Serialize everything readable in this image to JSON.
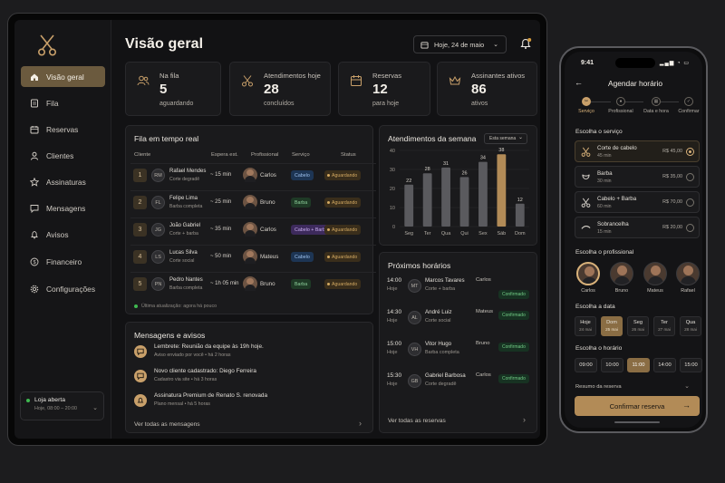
{
  "sidebar": {
    "items": [
      {
        "label": "Visão geral",
        "icon": "home-icon"
      },
      {
        "label": "Fila",
        "icon": "list-icon"
      },
      {
        "label": "Reservas",
        "icon": "calendar-icon"
      },
      {
        "label": "Clientes",
        "icon": "users-icon"
      },
      {
        "label": "Assinaturas",
        "icon": "star-icon"
      },
      {
        "label": "Mensagens",
        "icon": "chat-icon"
      },
      {
        "label": "Avisos",
        "icon": "bell-icon"
      },
      {
        "label": "Financeiro",
        "icon": "dollar-icon"
      },
      {
        "label": "Configurações",
        "icon": "gear-icon"
      }
    ],
    "store": {
      "status": "Loja aberta",
      "hours": "Hoje, 08:00 – 20:00"
    }
  },
  "header": {
    "title": "Visão geral",
    "date": "Hoje, 24 de maio"
  },
  "stats": [
    {
      "label": "Na fila",
      "value": "5",
      "sub": "aguardando"
    },
    {
      "label": "Atendimentos hoje",
      "value": "28",
      "sub": "concluídos"
    },
    {
      "label": "Reservas",
      "value": "12",
      "sub": "para hoje"
    },
    {
      "label": "Assinantes ativos",
      "value": "86",
      "sub": "ativos"
    }
  ],
  "queue": {
    "title": "Fila em tempo real",
    "headers": {
      "client": "Cliente",
      "wait": "Espera est.",
      "pro": "Profissional",
      "service": "Serviço",
      "status": "Status"
    },
    "rows": [
      {
        "n": "1",
        "initials": "RM",
        "name": "Rafael Mendes",
        "svc": "Corte degradê",
        "wait": "~ 15 min",
        "pro": "Carlos",
        "chip": "Cabelo",
        "status": "Aguardando"
      },
      {
        "n": "2",
        "initials": "FL",
        "name": "Felipe Lima",
        "svc": "Barba completa",
        "wait": "~ 25 min",
        "pro": "Bruno",
        "chip": "Barba",
        "status": "Aguardando"
      },
      {
        "n": "3",
        "initials": "JG",
        "name": "João Gabriel",
        "svc": "Corte + barba",
        "wait": "~ 35 min",
        "pro": "Carlos",
        "chip": "Cabelo + Barba",
        "status": "Aguardando"
      },
      {
        "n": "4",
        "initials": "LS",
        "name": "Lucas Silva",
        "svc": "Corte social",
        "wait": "~ 50 min",
        "pro": "Mateus",
        "chip": "Cabelo",
        "status": "Aguardando"
      },
      {
        "n": "5",
        "initials": "PN",
        "name": "Pedro Nantes",
        "svc": "Barba completa",
        "wait": "~ 1h 05 min",
        "pro": "Bruno",
        "chip": "Barba",
        "status": "Aguardando"
      }
    ],
    "updated": "Última atualização: agora há pouco"
  },
  "week": {
    "title": "Atendimentos da semana",
    "filter": "Esta semana"
  },
  "chart_data": {
    "type": "bar",
    "categories": [
      "Seg",
      "Ter",
      "Qua",
      "Qui",
      "Sex",
      "Sáb",
      "Dom"
    ],
    "values": [
      22,
      28,
      31,
      26,
      34,
      38,
      12
    ],
    "highlight": "Sáb",
    "ylim": [
      0,
      40
    ],
    "yticks": [
      0,
      10,
      20,
      30,
      40
    ],
    "colors": {
      "bar": "#5a5a5e",
      "highlight": "#b28b57"
    }
  },
  "messages": {
    "title": "Mensagens e avisos",
    "items": [
      {
        "title": "Lembrete: Reunião da equipe às 19h hoje.",
        "meta": "Aviso enviado por você  •  há 2 horas"
      },
      {
        "title": "Novo cliente cadastrado: Diego Ferreira",
        "meta": "Cadastro via site  •  há 3 horas"
      },
      {
        "title": "Assinatura Premium de Renato S. renovada",
        "meta": "Plano mensal  •  há 5 horas"
      }
    ],
    "link": "Ver todas as mensagens"
  },
  "next": {
    "title": "Próximos horários",
    "items": [
      {
        "time": "14:00",
        "day": "Hoje",
        "initials": "MT",
        "name": "Marcos Tavares",
        "svc": "Corte + barba",
        "pro": "Carlos",
        "status": "Confirmado"
      },
      {
        "time": "14:30",
        "day": "Hoje",
        "initials": "AL",
        "name": "André Luiz",
        "svc": "Corte social",
        "pro": "Mateus",
        "status": "Confirmado"
      },
      {
        "time": "15:00",
        "day": "Hoje",
        "initials": "VH",
        "name": "Vitor Hugo",
        "svc": "Barba completa",
        "pro": "Bruno",
        "status": "Confirmado"
      },
      {
        "time": "15:30",
        "day": "Hoje",
        "initials": "GB",
        "name": "Gabriel Barbosa",
        "svc": "Corte degradê",
        "pro": "Carlos",
        "status": "Confirmado"
      }
    ],
    "link": "Ver todas as reservas"
  },
  "phone": {
    "time": "9:41",
    "title": "Agendar horário",
    "steps": [
      "Serviço",
      "Profissional",
      "Data e hora",
      "Confirmar"
    ],
    "service_title": "Escolha o serviço",
    "services": [
      {
        "name": "Corte de cabelo",
        "dur": "45 min",
        "price": "R$ 45,00",
        "icon": "scissors-icon"
      },
      {
        "name": "Barba",
        "dur": "30 min",
        "price": "R$ 35,00",
        "icon": "beard-icon"
      },
      {
        "name": "Cabelo + Barba",
        "dur": "60 min",
        "price": "R$ 70,00",
        "icon": "scissors-icon"
      },
      {
        "name": "Sobrancelha",
        "dur": "15 min",
        "price": "R$ 20,00",
        "icon": "eyebrow-icon"
      }
    ],
    "pro_title": "Escolha o profissional",
    "pros": [
      "Carlos",
      "Bruno",
      "Mateus",
      "Rafael"
    ],
    "date_title": "Escolha a data",
    "days": [
      {
        "d": "Hoje",
        "n": "24 mai"
      },
      {
        "d": "Dom",
        "n": "25 mai"
      },
      {
        "d": "Seg",
        "n": "26 mai"
      },
      {
        "d": "Ter",
        "n": "27 mai"
      },
      {
        "d": "Qua",
        "n": "28 mai"
      }
    ],
    "hour_title": "Escolha o horário",
    "hours": [
      "09:00",
      "10:00",
      "11:00",
      "14:00",
      "15:00"
    ],
    "summary": "Resumo da reserva",
    "cta": "Confirmar reserva"
  }
}
